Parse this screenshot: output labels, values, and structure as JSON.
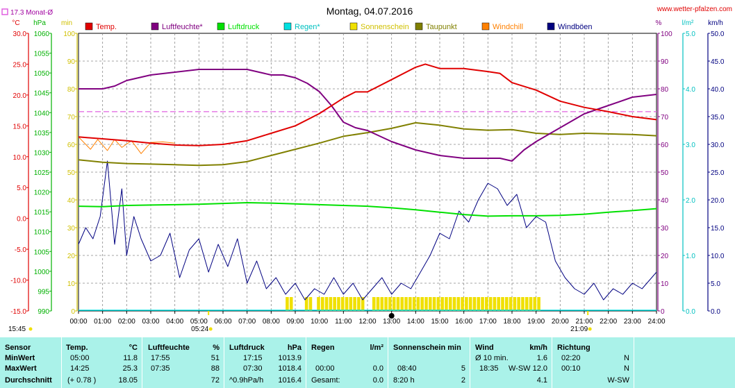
{
  "title": "Montag, 04.07.2016",
  "watermark": "www.wetter-pfalzen.com",
  "month_avg_label": "17.3 Monat-Ø",
  "month_avg_value": 17.3,
  "axis_units": {
    "temp": "°C",
    "pressure": "hPa",
    "sun": "min",
    "percent": "%",
    "rain": "l/m²",
    "wind": "km/h"
  },
  "colors": {
    "temp": "#e00000",
    "humidity": "#800080",
    "pressure": "#00e000",
    "rain": "#00e0e0",
    "sunshine": "#f0e000",
    "dewpoint": "#808000",
    "windchill": "#ff8000",
    "gusts": "#000080",
    "month_avg": "#e060e0",
    "panel": "#aaf2e9"
  },
  "legend": [
    {
      "key": "temp",
      "label": "Temp."
    },
    {
      "key": "humidity",
      "label": "Luftfeuchte*"
    },
    {
      "key": "pressure",
      "label": "Luftdruck"
    },
    {
      "key": "rain",
      "label": "Regen*"
    },
    {
      "key": "sunshine",
      "label": "Sonnenschein"
    },
    {
      "key": "dewpoint",
      "label": "Taupunkt"
    },
    {
      "key": "windchill",
      "label": "Windchill"
    },
    {
      "key": "gusts",
      "label": "Windböen"
    }
  ],
  "markers": {
    "sunrise": "05:24",
    "sunset": "21:09",
    "left_time": "15:45"
  },
  "chart_data": {
    "type": "line",
    "title": "Montag, 04.07.2016",
    "x_ticks": [
      "00:00",
      "01:00",
      "02:00",
      "03:00",
      "04:00",
      "05:00",
      "06:00",
      "07:00",
      "08:00",
      "09:00",
      "10:00",
      "11:00",
      "12:00",
      "13:00",
      "14:00",
      "15:00",
      "16:00",
      "17:00",
      "18:00",
      "19:00",
      "20:00",
      "21:00",
      "22:00",
      "23:00",
      "24:00"
    ],
    "xlim": [
      0,
      24
    ],
    "axes": {
      "temp": {
        "unit": "°C",
        "range": [
          -15,
          30
        ],
        "ticks": [
          "30.0",
          "25.0",
          "20.0",
          "15.0",
          "10.0",
          "5.0",
          "0.0",
          "-5.0",
          "-10.0",
          "-15.0"
        ]
      },
      "pressure": {
        "unit": "hPa",
        "range": [
          990,
          1060
        ],
        "ticks": [
          "1060",
          "1055",
          "1050",
          "1045",
          "1040",
          "1035",
          "1030",
          "1025",
          "1020",
          "1015",
          "1010",
          "1005",
          "1000",
          "995",
          "990"
        ]
      },
      "sun": {
        "unit": "min",
        "range": [
          0,
          100
        ],
        "ticks": [
          "100",
          "90",
          "80",
          "70",
          "60",
          "50",
          "40",
          "30",
          "20",
          "10",
          "0"
        ]
      },
      "percent": {
        "unit": "%",
        "range": [
          0,
          100
        ],
        "ticks": [
          "100",
          "90",
          "80",
          "70",
          "60",
          "50",
          "40",
          "30",
          "20",
          "10",
          "0"
        ]
      },
      "rain": {
        "unit": "l/m²",
        "range": [
          0,
          5
        ],
        "ticks": [
          "5.0",
          "4.0",
          "3.0",
          "2.0",
          "1.0",
          "0.0"
        ]
      },
      "wind": {
        "unit": "km/h",
        "range": [
          0,
          50
        ],
        "ticks": [
          "50.0",
          "45.0",
          "40.0",
          "35.0",
          "30.0",
          "25.0",
          "20.0",
          "15.0",
          "10.0",
          "5.0",
          "0.0"
        ]
      }
    },
    "series": [
      {
        "name": "Temp.",
        "key": "temp",
        "axis": "temp",
        "x": [
          0,
          1,
          2,
          3,
          4,
          5,
          6,
          7,
          8,
          9,
          10,
          11,
          11.5,
          12,
          13,
          14,
          14.4,
          15,
          16,
          17,
          17.5,
          18,
          19,
          20,
          21,
          22,
          23,
          24
        ],
        "y": [
          13.2,
          12.9,
          12.6,
          12.2,
          11.9,
          11.8,
          12.0,
          12.6,
          13.8,
          15.0,
          17.0,
          19.5,
          20.5,
          20.5,
          22.5,
          24.5,
          25.0,
          24.3,
          24.3,
          23.8,
          23.5,
          22.0,
          20.8,
          19.0,
          18.0,
          17.3,
          16.5,
          16.0
        ]
      },
      {
        "name": "Luftfeuchte*",
        "key": "humidity",
        "axis": "percent",
        "x": [
          0,
          1,
          1.5,
          2,
          3,
          4,
          5,
          6,
          7,
          7.5,
          8,
          8.5,
          9,
          9.5,
          10,
          10.5,
          11,
          11.5,
          12,
          13,
          14,
          15,
          16,
          17,
          17.5,
          18,
          18.5,
          19,
          20,
          21,
          22,
          23,
          24
        ],
        "y": [
          80,
          80,
          81,
          83,
          85,
          86,
          87,
          87,
          87,
          86,
          85,
          85,
          84,
          82,
          79,
          74,
          68,
          66,
          65,
          61,
          58,
          56,
          55,
          55,
          55,
          54,
          58,
          61,
          66,
          71,
          74,
          77,
          78
        ]
      },
      {
        "name": "Luftdruck",
        "key": "pressure",
        "axis": "pressure",
        "x": [
          0,
          1,
          2,
          3,
          4,
          5,
          6,
          7,
          8,
          9,
          10,
          11,
          12,
          13,
          14,
          15,
          16,
          17,
          18,
          19,
          20,
          21,
          22,
          23,
          24
        ],
        "y": [
          1016.4,
          1016.3,
          1016.6,
          1016.7,
          1016.8,
          1016.9,
          1017.1,
          1017.3,
          1017.2,
          1017.0,
          1016.8,
          1016.6,
          1016.4,
          1016.0,
          1015.5,
          1014.9,
          1014.3,
          1013.9,
          1014.0,
          1014.0,
          1014.1,
          1014.4,
          1014.9,
          1015.3,
          1015.8
        ]
      },
      {
        "name": "Taupunkt",
        "key": "dewpoint",
        "axis": "temp",
        "x": [
          0,
          1,
          2,
          3,
          4,
          5,
          6,
          7,
          8,
          9,
          10,
          11,
          12,
          13,
          14,
          15,
          16,
          17,
          18,
          19,
          20,
          21,
          22,
          23,
          24
        ],
        "y": [
          9.5,
          9.1,
          8.9,
          8.8,
          8.7,
          8.6,
          8.7,
          9.2,
          10.2,
          11.2,
          12.2,
          13.3,
          13.9,
          14.6,
          15.5,
          15.1,
          14.5,
          14.3,
          14.4,
          13.8,
          13.6,
          13.8,
          13.7,
          13.6,
          13.4
        ]
      },
      {
        "name": "Windchill",
        "key": "windchill",
        "axis": "temp",
        "x": [
          0,
          0.5,
          0.8,
          1.2,
          1.5,
          1.8,
          2.2,
          2.6,
          3,
          3.5,
          4
        ],
        "y": [
          13.2,
          11.2,
          12.8,
          11.0,
          12.8,
          11.5,
          12.6,
          10.5,
          12.3,
          12.4,
          12.2
        ]
      },
      {
        "name": "Windböen",
        "key": "gusts",
        "axis": "wind",
        "x": [
          0,
          0.3,
          0.6,
          0.9,
          1.2,
          1.5,
          1.8,
          2.0,
          2.3,
          2.6,
          3.0,
          3.4,
          3.8,
          4.2,
          4.6,
          5.0,
          5.4,
          5.8,
          6.2,
          6.6,
          7.0,
          7.4,
          7.8,
          8.2,
          8.6,
          9.0,
          9.4,
          9.8,
          10.2,
          10.6,
          11.0,
          11.4,
          11.8,
          12.2,
          12.6,
          13.0,
          13.4,
          13.8,
          14.2,
          14.6,
          15.0,
          15.4,
          15.8,
          16.2,
          16.6,
          17.0,
          17.4,
          17.8,
          18.2,
          18.6,
          19.0,
          19.4,
          19.8,
          20.2,
          20.6,
          21.0,
          21.4,
          21.8,
          22.2,
          22.6,
          23.0,
          23.4,
          23.8,
          24.0
        ],
        "y": [
          12,
          15,
          13,
          17,
          27,
          12,
          22,
          10,
          17,
          13,
          9,
          10,
          14,
          6,
          11,
          13,
          7,
          12,
          8,
          13,
          5,
          9,
          4,
          6,
          3,
          5,
          2,
          4,
          3,
          6,
          3,
          5,
          2,
          4,
          6,
          3,
          5,
          4,
          7,
          10,
          14,
          13,
          18,
          16,
          20,
          23,
          22,
          19,
          21,
          15,
          17,
          16,
          9,
          6,
          4,
          3,
          5,
          2,
          4,
          3,
          5,
          4,
          6,
          7
        ]
      }
    ],
    "sunshine_bars": {
      "axis": "sun",
      "bars": [
        [
          8.6,
          8.8,
          5
        ],
        [
          9.4,
          9.6,
          5
        ],
        [
          9.9,
          11.9,
          5
        ],
        [
          12.2,
          19.1,
          5
        ]
      ]
    },
    "reference_lines": [
      {
        "name": "17.3 Monat-Ø",
        "axis": "temp",
        "value": 17.3
      }
    ]
  },
  "table": {
    "headers": {
      "sensor": "Sensor",
      "temp": "Temp.",
      "temp_unit": "°C",
      "hum": "Luftfeuchte",
      "hum_unit": "%",
      "press": "Luftdruck",
      "press_unit": "hPa",
      "rain": "Regen",
      "rain_unit": "l/m²",
      "sun": "Sonnenschein min",
      "wind": "Wind",
      "wind_unit": "km/h",
      "dir": "Richtung"
    },
    "rows": [
      {
        "label": "MinWert",
        "temp_time": "05:00",
        "temp_val": "11.8",
        "hum_time": "17:55",
        "hum_val": "51",
        "press_time": "17:15",
        "press_val": "1013.9",
        "rain_time": "",
        "rain_val": "",
        "sun_time": "",
        "sun_val": "",
        "wind_time": "Ø 10 min.",
        "wind_val": "1.6",
        "dir_time": "02:20",
        "dir_val": "N"
      },
      {
        "label": "MaxWert",
        "temp_time": "14:25",
        "temp_val": "25.3",
        "hum_time": "07:35",
        "hum_val": "88",
        "press_time": "07:30",
        "press_val": "1018.4",
        "rain_time": "00:00",
        "rain_val": "0.0",
        "sun_time": "08:40",
        "sun_val": "5",
        "wind_time": "18:35",
        "wind_val": "W-SW 12.0",
        "dir_time": "00:10",
        "dir_val": "N"
      },
      {
        "label": "Durchschnitt",
        "temp_time": "(+ 0.78 )",
        "temp_val": "18.05",
        "hum_time": "",
        "hum_val": "72",
        "press_time": "^0.9hPa/h",
        "press_val": "1016.4",
        "rain_time": "Gesamt:",
        "rain_val": "0.0",
        "sun_time": "8:20 h",
        "sun_val": "2",
        "wind_time": "",
        "wind_val": "4.1",
        "dir_time": "",
        "dir_val": "W-SW"
      }
    ]
  }
}
